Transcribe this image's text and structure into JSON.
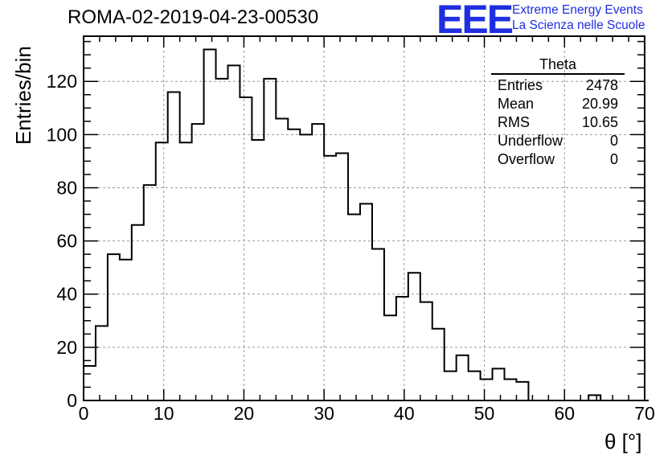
{
  "header": {
    "title": "ROMA-02-2019-04-23-00530",
    "logo": "EEE",
    "logo_line1": "Extreme Energy Events",
    "logo_line2": "La Scienza nelle Scuole"
  },
  "stats_box": {
    "title": "Theta",
    "rows": [
      {
        "label": "Entries",
        "value": "2478"
      },
      {
        "label": "Mean",
        "value": "20.99"
      },
      {
        "label": "RMS",
        "value": "10.65"
      },
      {
        "label": "Underflow",
        "value": "0"
      },
      {
        "label": "Overflow",
        "value": "0"
      }
    ]
  },
  "chart_data": {
    "type": "bar",
    "style": "step-histogram",
    "title": "ROMA-02-2019-04-23-00530",
    "xlabel": "θ [°]",
    "ylabel": "Entries/bin",
    "xlim": [
      0,
      70
    ],
    "ylim": [
      0,
      137
    ],
    "xticks": [
      0,
      10,
      20,
      30,
      40,
      50,
      60,
      70
    ],
    "yticks": [
      0,
      20,
      40,
      60,
      80,
      100,
      120
    ],
    "grid": true,
    "bin_width": 1.5,
    "bin_edges_start": 0,
    "values": [
      13,
      28,
      55,
      53,
      66,
      81,
      97,
      116,
      97,
      104,
      132,
      121,
      126,
      114,
      98,
      121,
      106,
      102,
      100,
      104,
      92,
      93,
      70,
      74,
      57,
      32,
      39,
      48,
      37,
      27,
      11,
      17,
      11,
      8,
      12,
      8,
      7,
      0,
      0,
      0,
      0,
      0,
      2,
      0,
      0,
      0,
      0
    ]
  }
}
